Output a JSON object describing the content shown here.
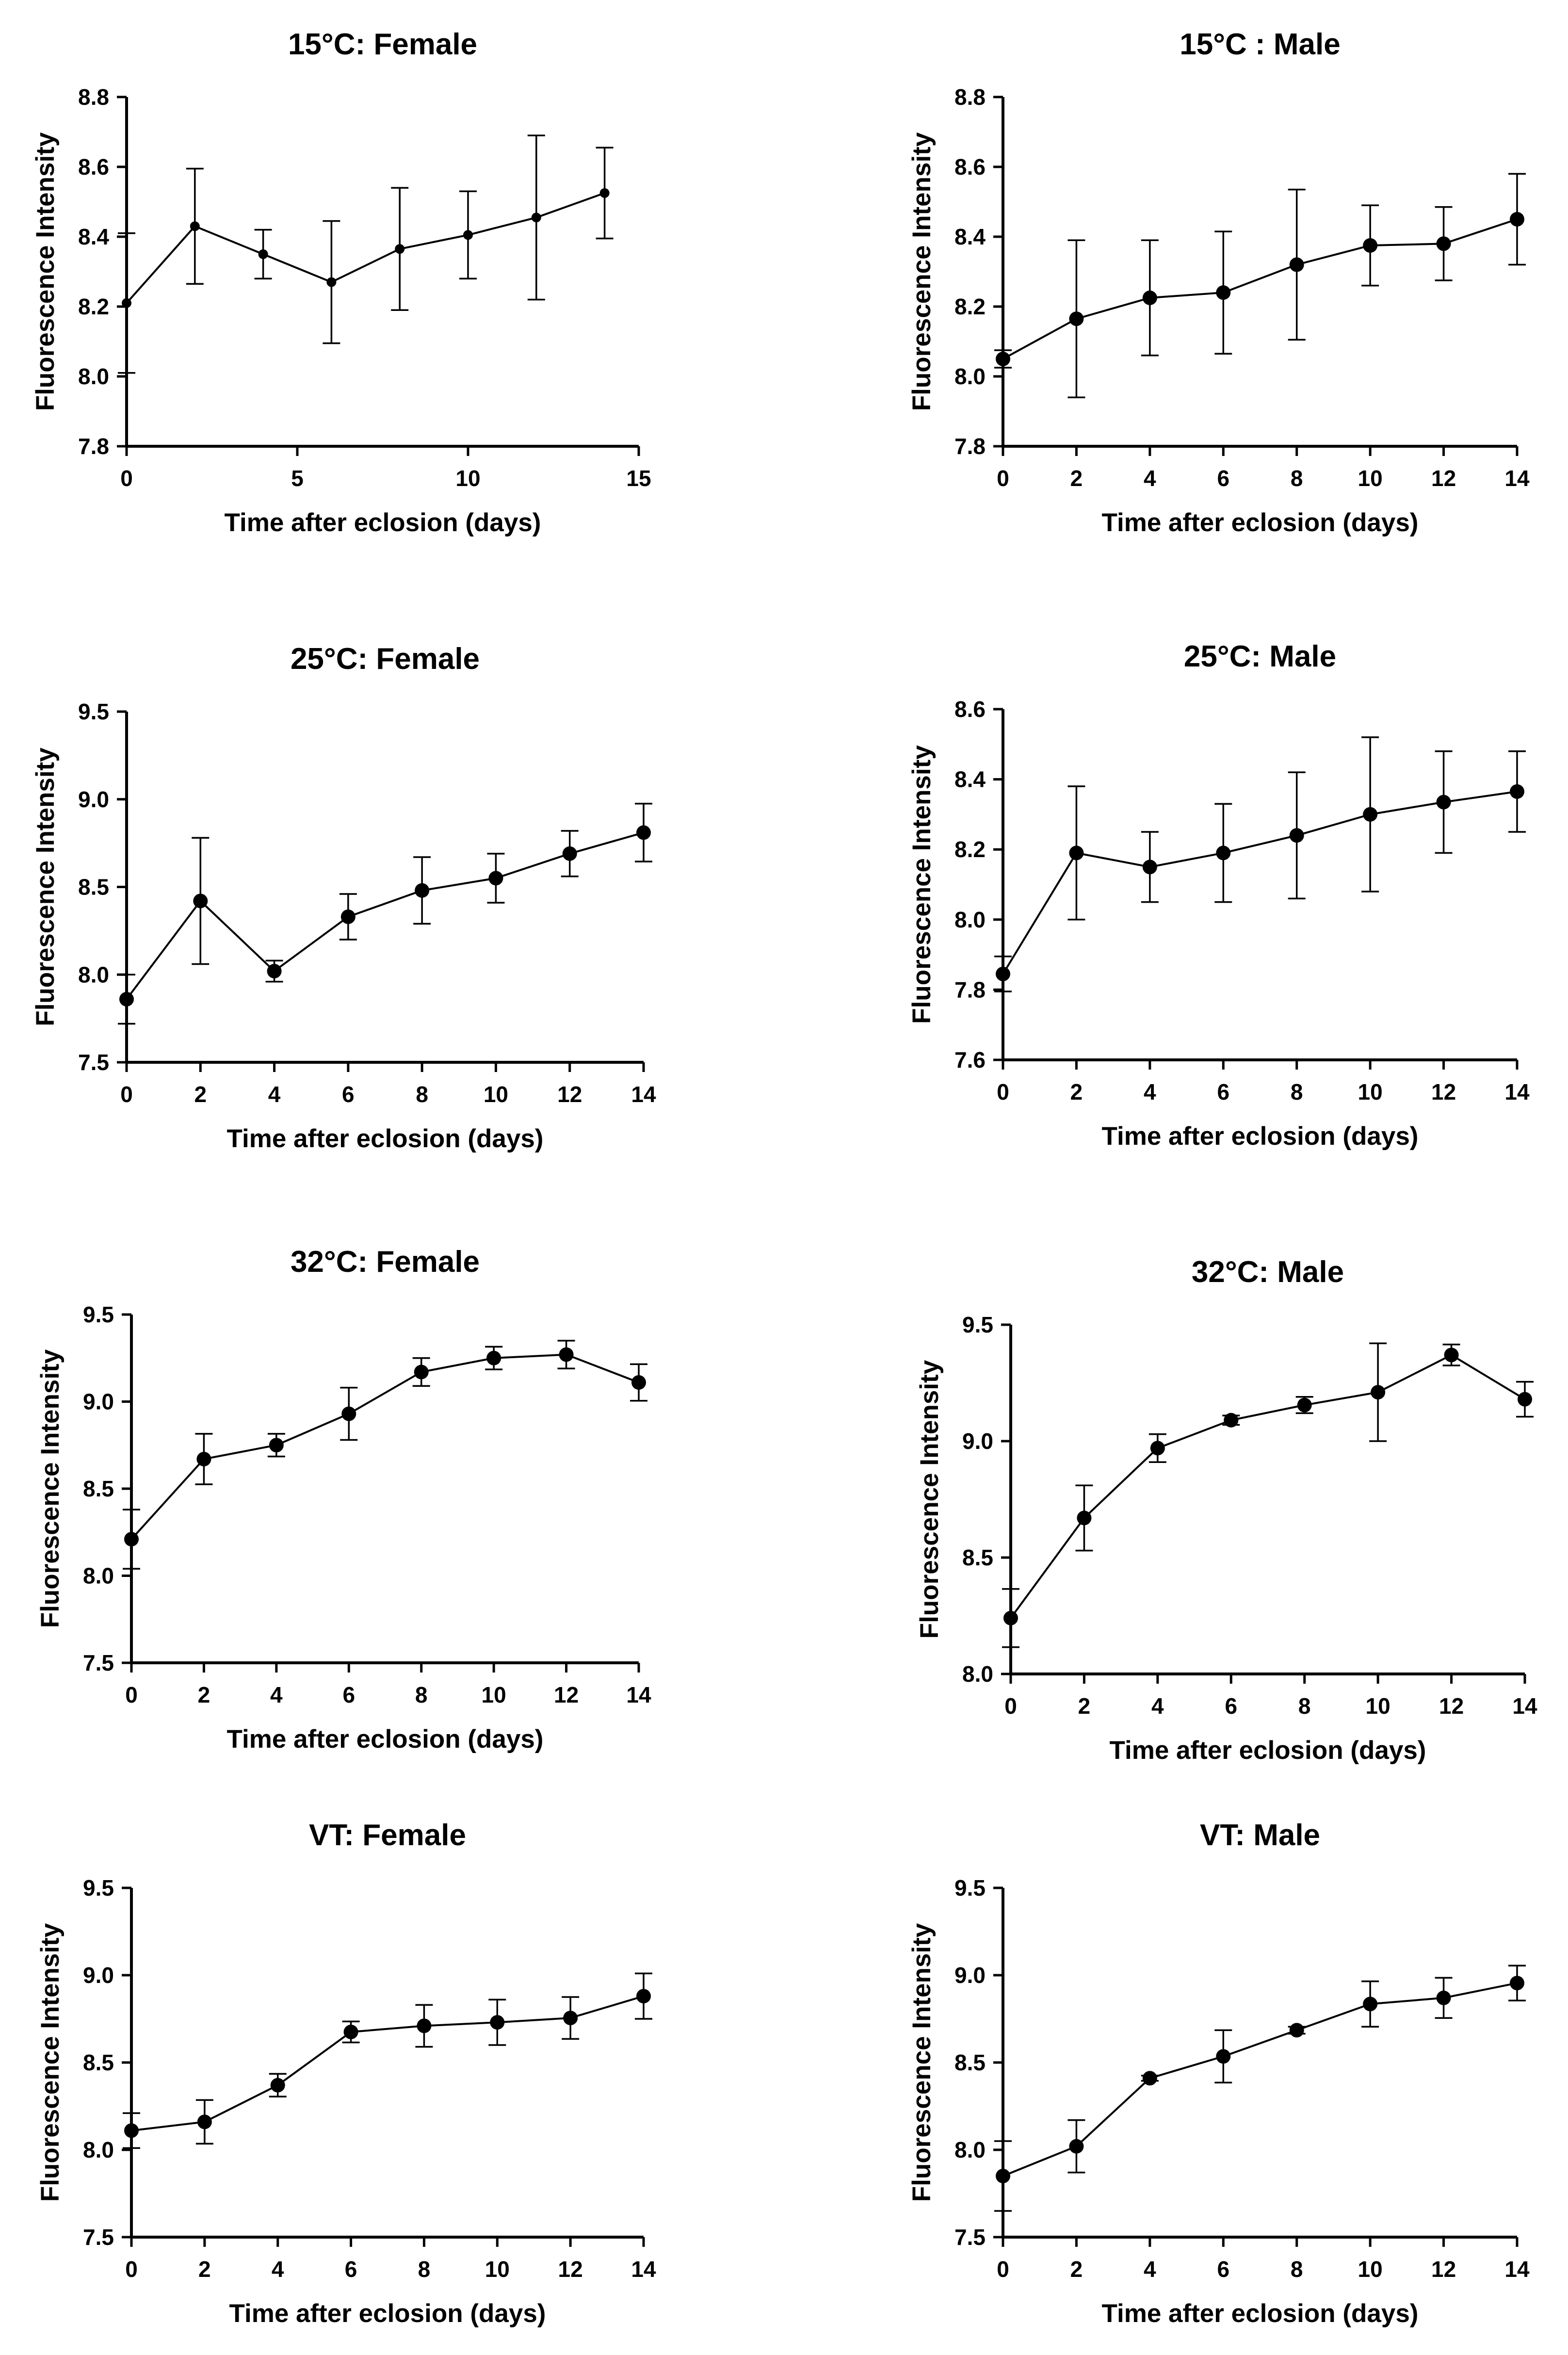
{
  "chart_data": [
    {
      "type": "line",
      "title": "15°C: Female",
      "xlabel": "Time after eclosion (days)",
      "ylabel": "Fluorescence Intensity",
      "xlim": [
        0,
        15
      ],
      "xticks": [
        0,
        5,
        10,
        15
      ],
      "ylim": [
        7.8,
        8.8
      ],
      "yticks": [
        7.8,
        8.0,
        8.2,
        8.4,
        8.6,
        8.8
      ],
      "x": [
        0,
        2,
        4,
        6,
        8,
        10,
        12,
        14
      ],
      "y": [
        8.21,
        8.43,
        8.35,
        8.27,
        8.365,
        8.405,
        8.455,
        8.525
      ],
      "err": [
        0.2,
        0.165,
        0.07,
        0.175,
        0.175,
        0.125,
        0.235,
        0.13
      ]
    },
    {
      "type": "line",
      "title": "15°C : Male",
      "xlabel": "Time after eclosion (days)",
      "ylabel": "Fluorescence Intensity",
      "xlim": [
        0,
        14
      ],
      "xticks": [
        0,
        2,
        4,
        6,
        8,
        10,
        12,
        14
      ],
      "ylim": [
        7.8,
        8.8
      ],
      "yticks": [
        7.8,
        8.0,
        8.2,
        8.4,
        8.6,
        8.8
      ],
      "x": [
        0,
        2,
        4,
        6,
        8,
        10,
        12,
        14
      ],
      "y": [
        8.05,
        8.165,
        8.225,
        8.24,
        8.32,
        8.375,
        8.38,
        8.45
      ],
      "err": [
        0.025,
        0.225,
        0.165,
        0.175,
        0.215,
        0.115,
        0.105,
        0.13
      ]
    },
    {
      "type": "line",
      "title": "25°C: Female",
      "xlabel": "Time after eclosion (days)",
      "ylabel": "Fluorescence Intensity",
      "xlim": [
        0,
        14
      ],
      "xticks": [
        0,
        2,
        4,
        6,
        8,
        10,
        12,
        14
      ],
      "ylim": [
        7.5,
        9.5
      ],
      "yticks": [
        7.5,
        8.0,
        8.5,
        9.0,
        9.5
      ],
      "x": [
        0,
        2,
        4,
        6,
        8,
        10,
        12,
        14
      ],
      "y": [
        7.86,
        8.42,
        8.02,
        8.33,
        8.48,
        8.55,
        8.69,
        8.81
      ],
      "err": [
        0.14,
        0.36,
        0.06,
        0.13,
        0.19,
        0.14,
        0.13,
        0.165
      ]
    },
    {
      "type": "line",
      "title": "25°C: Male",
      "xlabel": "Time after eclosion (days)",
      "ylabel": "Fluorescence Intensity",
      "xlim": [
        0,
        14
      ],
      "xticks": [
        0,
        2,
        4,
        6,
        8,
        10,
        12,
        14
      ],
      "ylim": [
        7.6,
        8.6
      ],
      "yticks": [
        7.6,
        7.8,
        8.0,
        8.2,
        8.4,
        8.6
      ],
      "x": [
        0,
        2,
        4,
        6,
        8,
        10,
        12,
        14
      ],
      "y": [
        7.845,
        8.19,
        8.15,
        8.19,
        8.24,
        8.3,
        8.335,
        8.365
      ],
      "err": [
        0.05,
        0.19,
        0.1,
        0.14,
        0.18,
        0.22,
        0.145,
        0.115
      ]
    },
    {
      "type": "line",
      "title": "32°C: Female",
      "xlabel": "Time after eclosion (days)",
      "ylabel": "Fluorescence Intensity",
      "xlim": [
        0,
        14
      ],
      "xticks": [
        0,
        2,
        4,
        6,
        8,
        10,
        12,
        14
      ],
      "ylim": [
        7.5,
        9.5
      ],
      "yticks": [
        7.5,
        8.0,
        8.5,
        9.0,
        9.5
      ],
      "x": [
        0,
        2,
        4,
        6,
        8,
        10,
        12,
        14
      ],
      "y": [
        8.21,
        8.67,
        8.75,
        8.93,
        9.17,
        9.25,
        9.27,
        9.11
      ],
      "err": [
        0.17,
        0.145,
        0.065,
        0.15,
        0.08,
        0.065,
        0.08,
        0.105
      ]
    },
    {
      "type": "line",
      "title": "32°C: Male",
      "xlabel": "Time after eclosion (days)",
      "ylabel": "Fluorescence Intensity",
      "xlim": [
        0,
        14
      ],
      "xticks": [
        0,
        2,
        4,
        6,
        8,
        10,
        12,
        14
      ],
      "ylim": [
        8.0,
        9.5
      ],
      "yticks": [
        8.0,
        8.5,
        9.0,
        9.5
      ],
      "x": [
        0,
        2,
        4,
        6,
        8,
        10,
        12,
        14
      ],
      "y": [
        8.24,
        8.67,
        8.97,
        9.09,
        9.155,
        9.21,
        9.37,
        9.18
      ],
      "err": [
        0.125,
        0.14,
        0.06,
        0.02,
        0.035,
        0.21,
        0.045,
        0.075
      ]
    },
    {
      "type": "line",
      "title": "VT: Female",
      "xlabel": "Time after eclosion (days)",
      "ylabel": "Fluorescence Intensity",
      "xlim": [
        0,
        14
      ],
      "xticks": [
        0,
        2,
        4,
        6,
        8,
        10,
        12,
        14
      ],
      "ylim": [
        7.5,
        9.5
      ],
      "yticks": [
        7.5,
        8.0,
        8.5,
        9.0,
        9.5
      ],
      "x": [
        0,
        2,
        4,
        6,
        8,
        10,
        12,
        14
      ],
      "y": [
        8.11,
        8.16,
        8.37,
        8.675,
        8.71,
        8.73,
        8.755,
        8.88
      ],
      "err": [
        0.1,
        0.125,
        0.065,
        0.06,
        0.12,
        0.13,
        0.12,
        0.13
      ]
    },
    {
      "type": "line",
      "title": "VT: Male",
      "xlabel": "Time after eclosion (days)",
      "ylabel": "Fluorescence Intensity",
      "xlim": [
        0,
        14
      ],
      "xticks": [
        0,
        2,
        4,
        6,
        8,
        10,
        12,
        14
      ],
      "ylim": [
        7.5,
        9.5
      ],
      "yticks": [
        7.5,
        8.0,
        8.5,
        9.0,
        9.5
      ],
      "x": [
        0,
        2,
        4,
        6,
        8,
        10,
        12,
        14
      ],
      "y": [
        7.85,
        8.02,
        8.41,
        8.535,
        8.685,
        8.835,
        8.87,
        8.955
      ],
      "err": [
        0.2,
        0.15,
        0.015,
        0.15,
        0.02,
        0.13,
        0.115,
        0.1
      ]
    }
  ]
}
